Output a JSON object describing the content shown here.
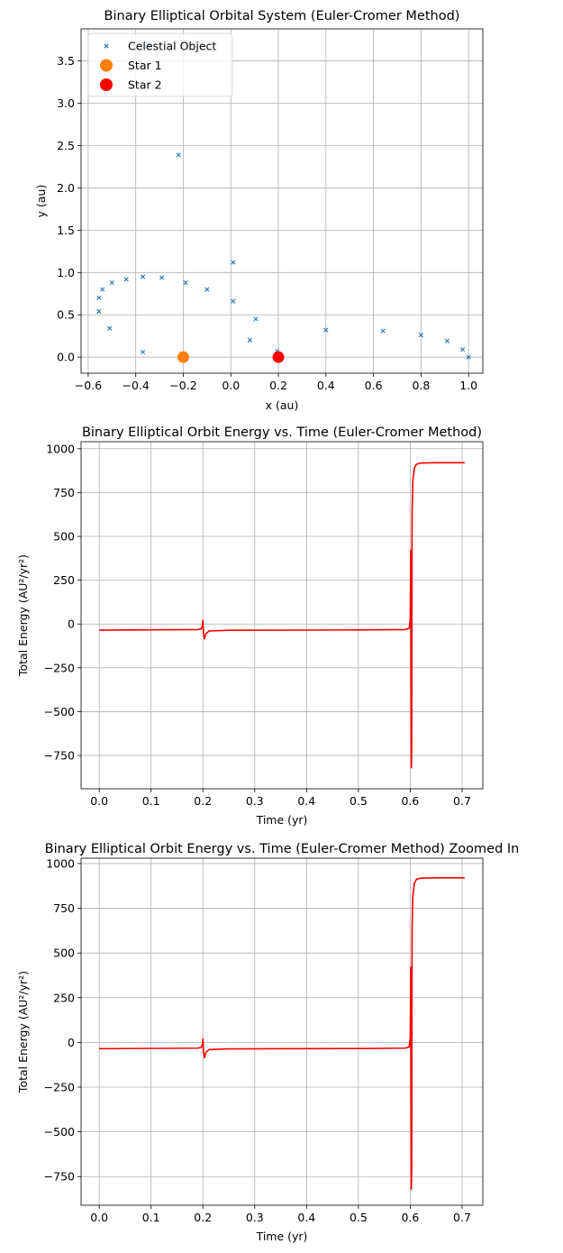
{
  "chart_data": [
    {
      "type": "scatter",
      "title": "Binary Elliptical Orbital System (Euler-Cromer Method)",
      "xlabel": "x (au)",
      "ylabel": "y (au)",
      "xlim": [
        -0.63,
        1.06
      ],
      "ylim": [
        -0.19,
        3.88
      ],
      "xticks": [
        -0.6,
        -0.4,
        -0.2,
        0.0,
        0.2,
        0.4,
        0.6,
        0.8,
        1.0
      ],
      "xtick_labels": [
        "−0.6",
        "−0.4",
        "−0.2",
        "0.0",
        "0.2",
        "0.4",
        "0.6",
        "0.8",
        "1.0"
      ],
      "yticks": [
        0.0,
        0.5,
        1.0,
        1.5,
        2.0,
        2.5,
        3.0,
        3.5
      ],
      "ytick_labels": [
        "0.0",
        "0.5",
        "1.0",
        "1.5",
        "2.0",
        "2.5",
        "3.0",
        "3.5"
      ],
      "grid": true,
      "legend_position": "top-left",
      "series": [
        {
          "name": "Celestial Object",
          "marker": "x",
          "color": "#1f77b4",
          "points": [
            [
              1.0,
              0.0
            ],
            [
              0.975,
              0.09
            ],
            [
              0.91,
              0.19
            ],
            [
              0.8,
              0.26
            ],
            [
              0.64,
              0.31
            ],
            [
              0.4,
              0.32
            ],
            [
              0.195,
              0.07
            ],
            [
              0.08,
              0.2
            ],
            [
              0.105,
              0.45
            ],
            [
              0.01,
              0.66
            ],
            [
              0.01,
              1.12
            ],
            [
              -0.1,
              0.8
            ],
            [
              -0.19,
              0.88
            ],
            [
              -0.22,
              2.39
            ],
            [
              -0.29,
              0.94
            ],
            [
              -0.37,
              0.95
            ],
            [
              -0.44,
              0.92
            ],
            [
              -0.5,
              0.88
            ],
            [
              -0.54,
              0.8
            ],
            [
              -0.555,
              0.7
            ],
            [
              -0.555,
              0.54
            ],
            [
              -0.51,
              0.34
            ],
            [
              -0.37,
              0.06
            ],
            [
              -0.35,
              3.7
            ]
          ]
        },
        {
          "name": "Star 1",
          "marker": "circle",
          "color": "#ff7f0e",
          "points": [
            [
              -0.2,
              0.0
            ]
          ]
        },
        {
          "name": "Star 2",
          "marker": "circle",
          "color": "#ff0000",
          "points": [
            [
              0.2,
              0.0
            ]
          ]
        }
      ]
    },
    {
      "type": "line",
      "title": "Binary Elliptical Orbit Energy vs. Time (Euler-Cromer Method)",
      "xlabel": "Time (yr)",
      "ylabel": "Total Energy (AU²/yr²)",
      "xlim": [
        -0.035,
        0.74
      ],
      "ylim": [
        -940,
        1040
      ],
      "xticks": [
        0.0,
        0.1,
        0.2,
        0.3,
        0.4,
        0.5,
        0.6,
        0.7
      ],
      "xtick_labels": [
        "0.0",
        "0.1",
        "0.2",
        "0.3",
        "0.4",
        "0.5",
        "0.6",
        "0.7"
      ],
      "yticks": [
        -750,
        -500,
        -250,
        0,
        250,
        500,
        750,
        1000
      ],
      "ytick_labels": [
        "−750",
        "−500",
        "−250",
        "0",
        "250",
        "500",
        "750",
        "1000"
      ],
      "grid": true,
      "series": [
        {
          "color": "#ff0000",
          "points": [
            [
              0.0,
              -35
            ],
            [
              0.19,
              -32
            ],
            [
              0.197,
              -28
            ],
            [
              0.199,
              -10
            ],
            [
              0.2,
              20
            ],
            [
              0.2015,
              -60
            ],
            [
              0.203,
              -85
            ],
            [
              0.206,
              -55
            ],
            [
              0.212,
              -40
            ],
            [
              0.25,
              -36
            ],
            [
              0.5,
              -34
            ],
            [
              0.59,
              -32
            ],
            [
              0.598,
              -25
            ],
            [
              0.6,
              30
            ],
            [
              0.601,
              420
            ],
            [
              0.6015,
              -300
            ],
            [
              0.6022,
              -820
            ],
            [
              0.6028,
              -700
            ],
            [
              0.6033,
              350
            ],
            [
              0.6037,
              650
            ],
            [
              0.605,
              820
            ],
            [
              0.608,
              890
            ],
            [
              0.612,
              912
            ],
            [
              0.62,
              918
            ],
            [
              0.65,
              920
            ],
            [
              0.705,
              920
            ]
          ]
        }
      ]
    },
    {
      "type": "line",
      "title": "Binary Elliptical Orbit Energy vs. Time (Euler-Cromer Method) Zoomed In",
      "xlabel": "Time (yr)",
      "ylabel": "Total Energy (AU²/yr²)",
      "xlim": [
        -0.035,
        0.74
      ],
      "ylim": [
        -910,
        1030
      ],
      "xticks": [
        0.0,
        0.1,
        0.2,
        0.3,
        0.4,
        0.5,
        0.6,
        0.7
      ],
      "xtick_labels": [
        "0.0",
        "0.1",
        "0.2",
        "0.3",
        "0.4",
        "0.5",
        "0.6",
        "0.7"
      ],
      "yticks": [
        -750,
        -500,
        -250,
        0,
        250,
        500,
        750,
        1000
      ],
      "ytick_labels": [
        "−750",
        "−500",
        "−250",
        "0",
        "250",
        "500",
        "750",
        "1000"
      ],
      "grid": true,
      "series": [
        {
          "color": "#ff0000",
          "points": [
            [
              0.0,
              -35
            ],
            [
              0.19,
              -32
            ],
            [
              0.197,
              -28
            ],
            [
              0.199,
              -10
            ],
            [
              0.2,
              20
            ],
            [
              0.2015,
              -60
            ],
            [
              0.203,
              -85
            ],
            [
              0.206,
              -55
            ],
            [
              0.212,
              -40
            ],
            [
              0.25,
              -36
            ],
            [
              0.5,
              -34
            ],
            [
              0.59,
              -32
            ],
            [
              0.598,
              -25
            ],
            [
              0.6,
              30
            ],
            [
              0.601,
              420
            ],
            [
              0.6015,
              -300
            ],
            [
              0.6022,
              -820
            ],
            [
              0.6028,
              -700
            ],
            [
              0.6033,
              350
            ],
            [
              0.6037,
              650
            ],
            [
              0.605,
              820
            ],
            [
              0.608,
              890
            ],
            [
              0.612,
              912
            ],
            [
              0.62,
              918
            ],
            [
              0.65,
              920
            ],
            [
              0.705,
              920
            ]
          ]
        }
      ]
    }
  ]
}
